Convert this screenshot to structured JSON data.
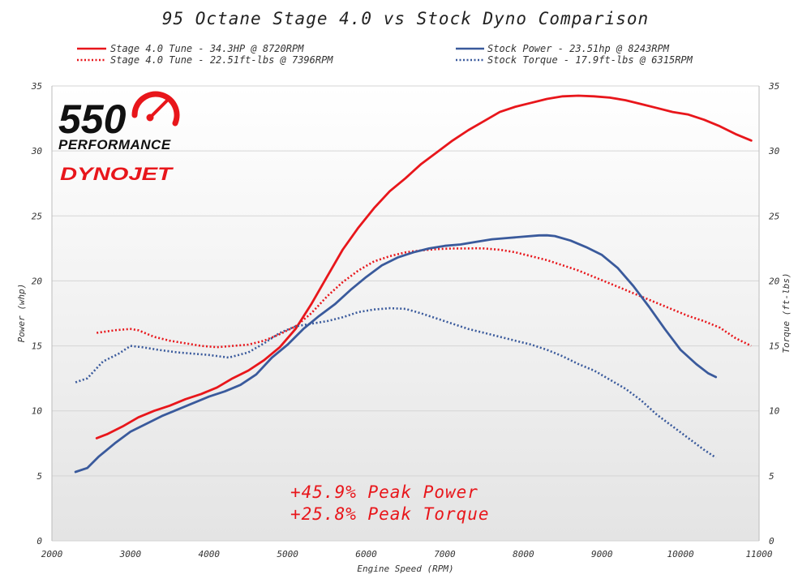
{
  "colors": {
    "tune": "#e8161b",
    "stock": "#3a5a9c",
    "grid": "#d5d5d5",
    "text": "#333333"
  },
  "logo": {
    "brand_number": "550",
    "brand_word": "PERFORMANCE",
    "dyno_brand": "DYNOJET"
  },
  "annotations": {
    "line1": "+45.9% Peak Power",
    "line2": "+25.8% Peak Torque"
  },
  "chart_data": {
    "type": "line",
    "title": "95 Octane Stage 4.0 vs Stock Dyno Comparison",
    "xlabel": "Engine Speed (RPM)",
    "ylabel": "Power (whp)",
    "y2label": "Torque (ft-lbs)",
    "xlim": [
      2000,
      11000
    ],
    "ylim": [
      0,
      35
    ],
    "y2lim": [
      0,
      35
    ],
    "xticks": [
      "2000",
      "3000",
      "4000",
      "5000",
      "6000",
      "7000",
      "8000",
      "9000",
      "10000",
      "11000"
    ],
    "yticks": [
      "0",
      "5",
      "10",
      "15",
      "20",
      "25",
      "30",
      "35"
    ],
    "grid": "horizontal",
    "legend_position": "top",
    "series": [
      {
        "name": "Stage 4.0 Tune - 34.3HP @ 8720RPM",
        "axis": "left",
        "style": "solid",
        "color": "#e8161b",
        "x": [
          2570,
          2700,
          2900,
          3100,
          3300,
          3500,
          3700,
          3900,
          4100,
          4300,
          4500,
          4700,
          4900,
          5100,
          5300,
          5500,
          5700,
          5900,
          6100,
          6300,
          6500,
          6700,
          6900,
          7100,
          7300,
          7500,
          7700,
          7900,
          8100,
          8300,
          8500,
          8700,
          8900,
          9100,
          9300,
          9500,
          9700,
          9900,
          10100,
          10300,
          10500,
          10700,
          10900
        ],
        "y": [
          7.9,
          8.2,
          8.8,
          9.5,
          10.0,
          10.4,
          10.9,
          11.3,
          11.8,
          12.5,
          13.1,
          13.9,
          14.9,
          16.3,
          18.2,
          20.3,
          22.4,
          24.1,
          25.6,
          26.9,
          27.9,
          29.0,
          29.9,
          30.8,
          31.6,
          32.3,
          33.0,
          33.4,
          33.7,
          34.0,
          34.2,
          34.25,
          34.2,
          34.1,
          33.9,
          33.6,
          33.3,
          33.0,
          32.8,
          32.4,
          31.9,
          31.3,
          30.8
        ]
      },
      {
        "name": "Stage 4.0 Tune - 22.51ft-lbs @ 7396RPM",
        "axis": "right",
        "style": "dotted",
        "color": "#e8161b",
        "x": [
          2570,
          2800,
          3000,
          3100,
          3300,
          3500,
          3700,
          3900,
          4100,
          4300,
          4500,
          4700,
          4900,
          5100,
          5300,
          5500,
          5700,
          5900,
          6100,
          6300,
          6500,
          6700,
          6900,
          7100,
          7300,
          7400,
          7500,
          7700,
          7900,
          8100,
          8300,
          8500,
          8700,
          8900,
          9100,
          9300,
          9500,
          9700,
          9900,
          10100,
          10300,
          10500,
          10700,
          10900
        ],
        "y": [
          16.0,
          16.2,
          16.3,
          16.2,
          15.7,
          15.4,
          15.2,
          15.0,
          14.9,
          15.0,
          15.1,
          15.4,
          15.9,
          16.5,
          17.5,
          18.8,
          19.9,
          20.8,
          21.5,
          21.9,
          22.2,
          22.35,
          22.45,
          22.5,
          22.5,
          22.51,
          22.5,
          22.4,
          22.2,
          21.9,
          21.6,
          21.2,
          20.8,
          20.3,
          19.8,
          19.3,
          18.8,
          18.3,
          17.8,
          17.3,
          16.9,
          16.4,
          15.6,
          15.0
        ]
      },
      {
        "name": "Stock Power - 23.51hp @ 8243RPM",
        "axis": "left",
        "style": "solid",
        "color": "#3a5a9c",
        "x": [
          2300,
          2450,
          2600,
          2800,
          3000,
          3200,
          3400,
          3600,
          3800,
          4000,
          4200,
          4400,
          4600,
          4800,
          5000,
          5200,
          5400,
          5600,
          5800,
          6000,
          6200,
          6400,
          6600,
          6800,
          7000,
          7200,
          7400,
          7600,
          7800,
          8000,
          8200,
          8300,
          8400,
          8600,
          8800,
          9000,
          9200,
          9400,
          9600,
          9800,
          10000,
          10200,
          10350,
          10450
        ],
        "y": [
          5.3,
          5.6,
          6.5,
          7.5,
          8.4,
          9.0,
          9.6,
          10.1,
          10.6,
          11.1,
          11.5,
          12.0,
          12.8,
          14.1,
          15.1,
          16.3,
          17.3,
          18.2,
          19.3,
          20.3,
          21.2,
          21.8,
          22.2,
          22.5,
          22.7,
          22.8,
          23.0,
          23.2,
          23.3,
          23.4,
          23.5,
          23.51,
          23.45,
          23.1,
          22.6,
          22.0,
          21.0,
          19.6,
          18.0,
          16.3,
          14.7,
          13.6,
          12.9,
          12.6
        ]
      },
      {
        "name": "Stock Torque - 17.9ft-lbs @ 6315RPM",
        "axis": "right",
        "style": "dotted",
        "color": "#3a5a9c",
        "x": [
          2300,
          2450,
          2650,
          2850,
          3000,
          3150,
          3350,
          3600,
          3800,
          4000,
          4250,
          4500,
          4700,
          4900,
          5100,
          5300,
          5500,
          5700,
          5900,
          6100,
          6300,
          6500,
          6700,
          6900,
          7100,
          7300,
          7500,
          7700,
          7900,
          8100,
          8300,
          8500,
          8700,
          8900,
          9100,
          9300,
          9500,
          9700,
          9900,
          10100,
          10300,
          10450
        ],
        "y": [
          12.2,
          12.5,
          13.8,
          14.4,
          15.0,
          14.9,
          14.7,
          14.5,
          14.4,
          14.3,
          14.1,
          14.5,
          15.2,
          16.0,
          16.5,
          16.7,
          16.9,
          17.2,
          17.6,
          17.8,
          17.9,
          17.85,
          17.5,
          17.1,
          16.7,
          16.3,
          16.0,
          15.7,
          15.4,
          15.1,
          14.7,
          14.2,
          13.6,
          13.1,
          12.4,
          11.7,
          10.8,
          9.7,
          8.8,
          7.9,
          7.0,
          6.4
        ]
      }
    ]
  }
}
